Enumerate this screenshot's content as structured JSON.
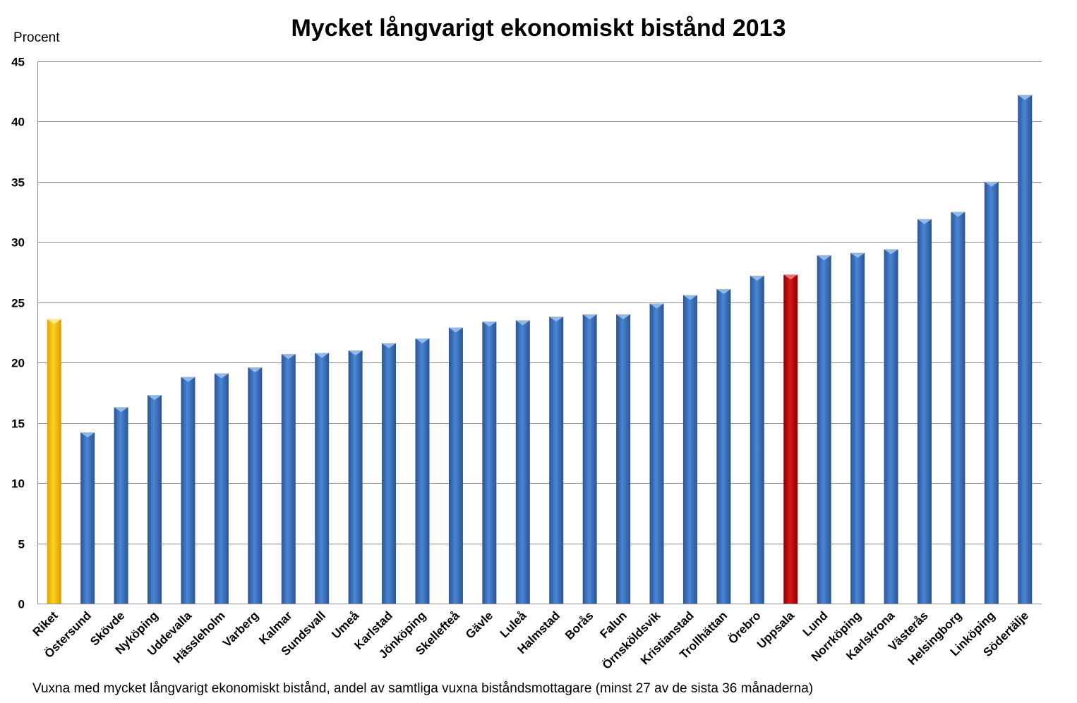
{
  "chart_data": {
    "type": "bar",
    "title": "Mycket långvarigt ekonomiskt bistånd 2013",
    "ylabel": "Procent",
    "xlabel": "",
    "footnote": "Vuxna med mycket långvarigt ekonomiskt bistånd, andel av samtliga vuxna biståndsmottagare (minst 27 av de sista 36 månaderna)",
    "ylim": [
      0,
      45
    ],
    "yticks": [
      0,
      5,
      10,
      15,
      20,
      25,
      30,
      35,
      40,
      45
    ],
    "grid": true,
    "legend": "none",
    "categories": [
      "Riket",
      "Östersund",
      "Skövde",
      "Nyköping",
      "Uddevalla",
      "Hässleholm",
      "Varberg",
      "Kalmar",
      "Sundsvall",
      "Umeå",
      "Karlstad",
      "Jönköping",
      "Skellefteå",
      "Gävle",
      "Luleå",
      "Halmstad",
      "Borås",
      "Falun",
      "Örnsköldsvik",
      "Kristianstad",
      "Trollhättan",
      "Örebro",
      "Uppsala",
      "Lund",
      "Norrköping",
      "Karlskrona",
      "Västerås",
      "Helsingborg",
      "Linköping",
      "Södertälje"
    ],
    "values": [
      23.6,
      14.2,
      16.3,
      17.3,
      18.8,
      19.1,
      19.6,
      20.7,
      20.8,
      21.0,
      21.6,
      22.0,
      22.9,
      23.4,
      23.5,
      23.8,
      24.0,
      24.0,
      24.9,
      25.6,
      26.1,
      27.2,
      27.3,
      28.9,
      29.1,
      29.4,
      31.9,
      32.5,
      35.0,
      42.2
    ],
    "colors": {
      "default": "#3b72c0",
      "highlight_total": "#ffc000",
      "highlight_city": "#c00000",
      "gridline": "#8c8c8c"
    },
    "highlights": {
      "Riket": "highlight_total",
      "Uppsala": "highlight_city"
    }
  }
}
